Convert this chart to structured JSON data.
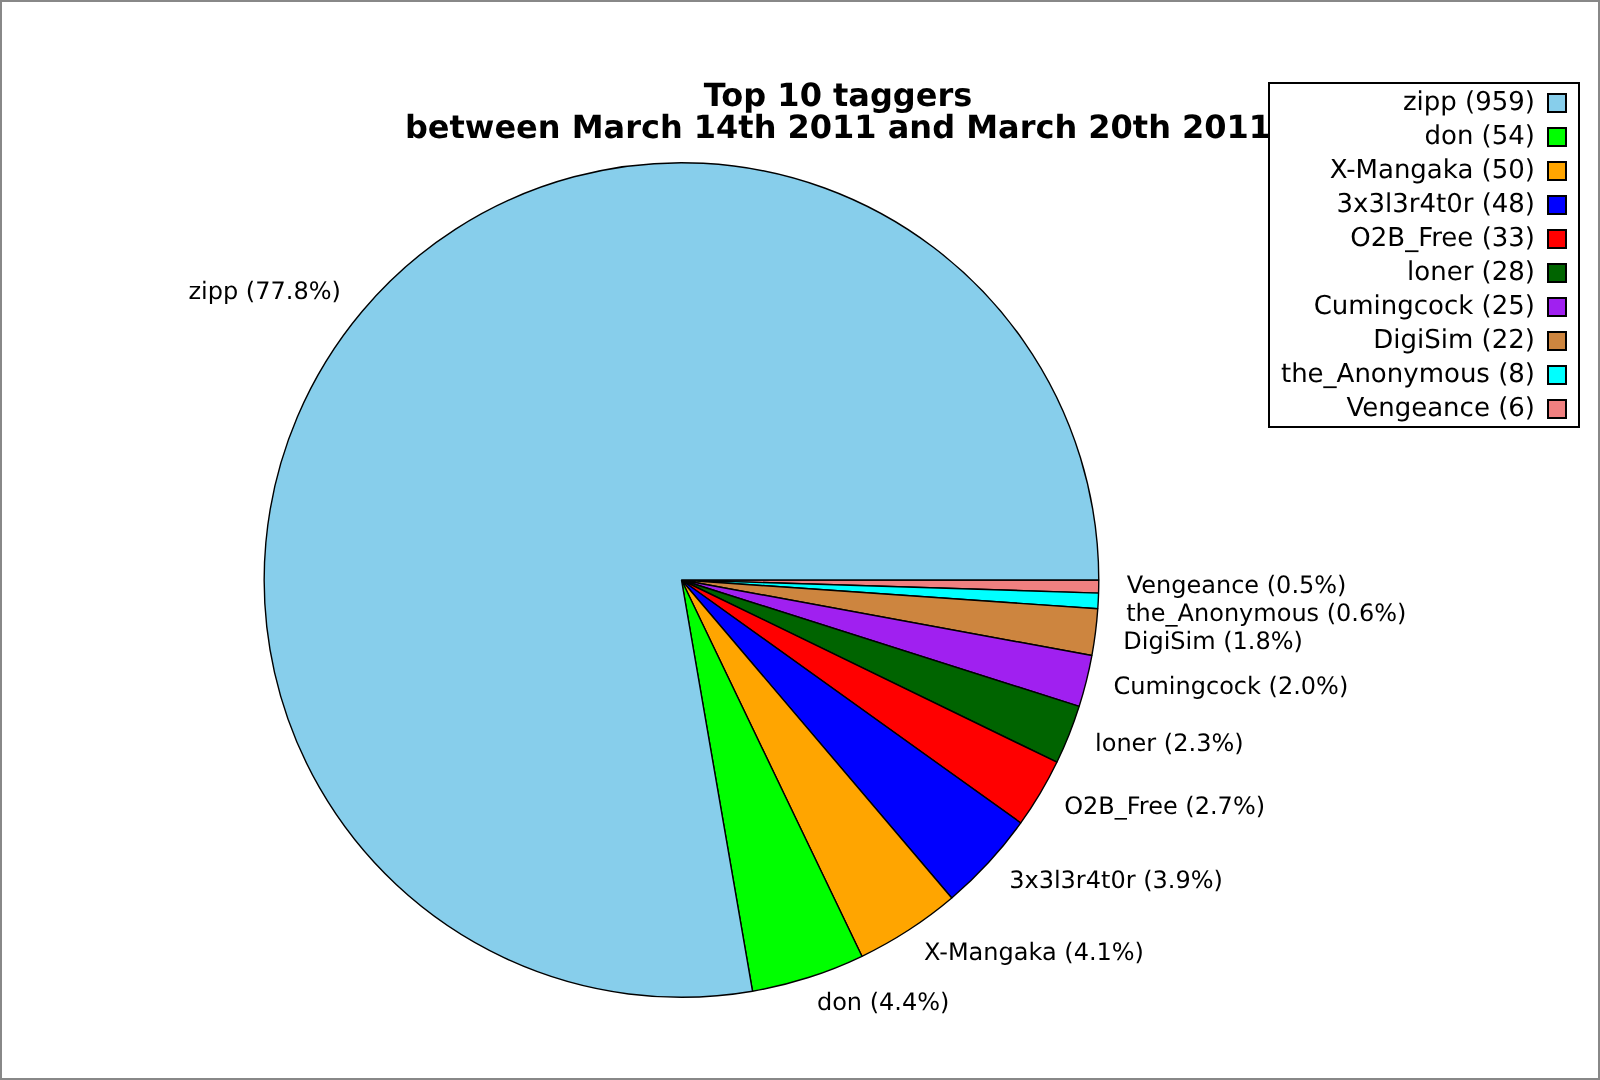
{
  "chart_data": {
    "type": "pie",
    "title": "Top 10 taggers",
    "subtitle": "between March 14th 2011 and March 20th 2011",
    "categories": [
      "zipp (959)",
      "don (54)",
      "X-Mangaka (50)",
      "3x3l3r4t0r (48)",
      "O2B_Free (33)",
      "loner (28)",
      "Cumingcock (25)",
      "DigiSim (22)",
      "the_Anonymous (8)",
      "Vengeance (6)"
    ],
    "values": [
      77.8,
      4.4,
      4.1,
      3.9,
      2.7,
      2.3,
      2.0,
      1.8,
      0.6,
      0.5
    ],
    "colors": [
      "#87ceeb",
      "#00ff00",
      "#ffa500",
      "#0000ff",
      "#ff0000",
      "#006400",
      "#a020f0",
      "#cd853f",
      "#00ffff",
      "#f08080"
    ],
    "value_labels": [
      "zipp (77.8%)",
      "don (4.4%)",
      "X-Mangaka (4.1%)",
      "3x3l3r4t0r (3.9%)",
      "O2B_Free (2.7%)",
      "loner (2.3%)",
      "Cumingcock (2.0%)",
      "DigiSim (1.8%)",
      "the_Anonymous (0.6%)",
      "Vengeance (0.5%)"
    ],
    "legend": "top right"
  }
}
